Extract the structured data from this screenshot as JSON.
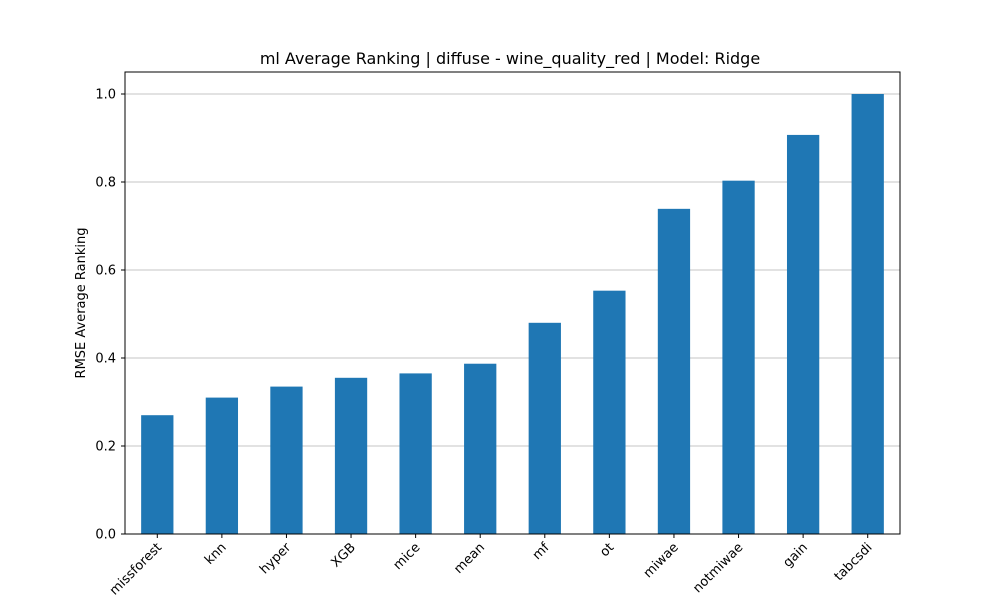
{
  "chart_data": {
    "type": "bar",
    "title": "ml Average Ranking | diffuse - wine_quality_red | Model: Ridge",
    "xlabel": "",
    "ylabel": "RMSE Average Ranking",
    "categories": [
      "missforest",
      "knn",
      "hyper",
      "XGB",
      "mice",
      "mean",
      "mf",
      "ot",
      "miwae",
      "notmiwae",
      "gain",
      "tabcsdi"
    ],
    "values": [
      0.27,
      0.31,
      0.335,
      0.355,
      0.365,
      0.387,
      0.48,
      0.553,
      0.739,
      0.803,
      0.907,
      1.0
    ],
    "ylim": [
      0,
      1.05
    ],
    "yticks": [
      "0.0",
      "0.2",
      "0.4",
      "0.6",
      "0.8",
      "1.0"
    ],
    "grid": "y-major",
    "bar_color": "#1f77b4"
  }
}
